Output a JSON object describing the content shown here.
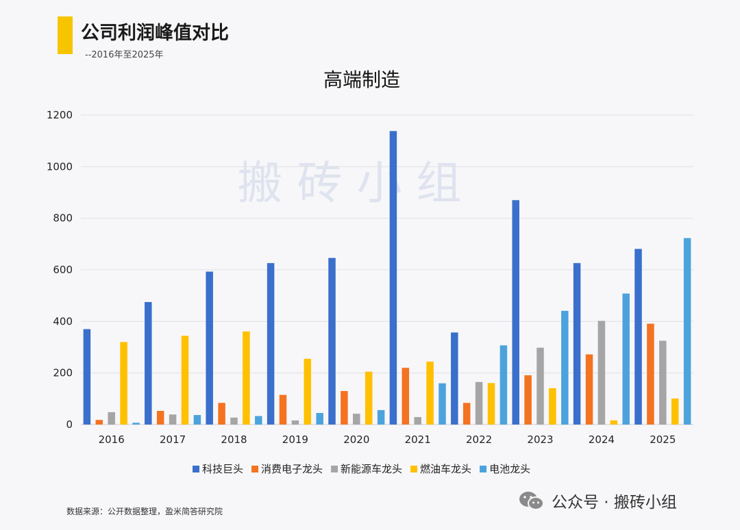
{
  "header": {
    "title": "公司利润峰值对比",
    "subtitle": "--2016年至2025年"
  },
  "footer": {
    "source": "数据来源：公开数据整理，盈米简答研究院",
    "brand": "公众号 · 搬砖小组"
  },
  "watermark": "搬 砖 小 组",
  "icons": {
    "brand": "wechat-icon"
  },
  "colors": {
    "accent": "#f7c500",
    "series": [
      "#3a6fcb",
      "#f47321",
      "#a5a5a5",
      "#ffc000",
      "#4ca3dc"
    ],
    "grid": "#e2e2e6",
    "watermark": "#dfe3ef"
  },
  "chart_data": {
    "type": "bar",
    "title": "高端制造",
    "xlabel": "",
    "ylabel": "",
    "categories": [
      "2016",
      "2017",
      "2018",
      "2019",
      "2020",
      "2021",
      "2022",
      "2023",
      "2024",
      "2025"
    ],
    "ylim": [
      0,
      1200
    ],
    "yticks": [
      0,
      200,
      400,
      600,
      800,
      1000,
      1200
    ],
    "grid": true,
    "legend": "bottom",
    "series": [
      {
        "name": "科技巨头",
        "values": [
          370,
          475,
          593,
          626,
          646,
          1138,
          357,
          870,
          626,
          681
        ]
      },
      {
        "name": "消费电子龙头",
        "values": [
          18,
          53,
          84,
          115,
          130,
          220,
          84,
          191,
          272,
          391
        ]
      },
      {
        "name": "新能源车龙头",
        "values": [
          48,
          39,
          27,
          16,
          42,
          29,
          165,
          298,
          402,
          325
        ]
      },
      {
        "name": "燃油车龙头",
        "values": [
          320,
          344,
          361,
          255,
          205,
          244,
          161,
          141,
          16,
          101
        ]
      },
      {
        "name": "电池龙头",
        "values": [
          7,
          37,
          33,
          45,
          56,
          160,
          307,
          441,
          508,
          723
        ]
      }
    ]
  }
}
